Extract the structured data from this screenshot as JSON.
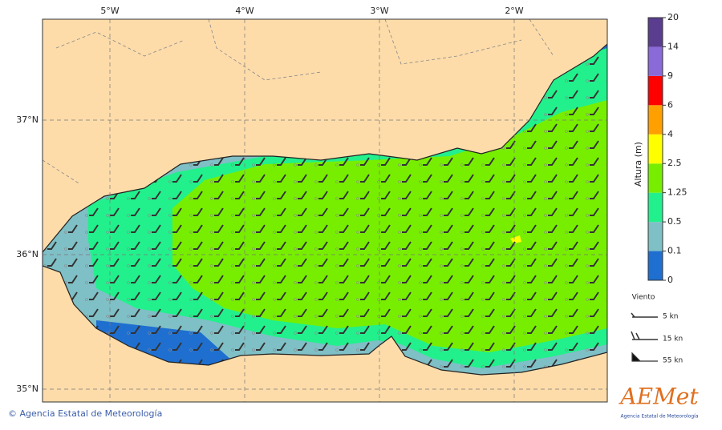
{
  "map": {
    "lon_labels": [
      "5°W",
      "4°W",
      "3°W",
      "2°W"
    ],
    "lat_labels": [
      "37°N",
      "36°N",
      "35°N"
    ]
  },
  "colorbar": {
    "title": "Altura (m)",
    "levels": [
      0,
      0.1,
      0.5,
      1.25,
      2.5,
      4,
      6,
      9,
      14,
      20
    ],
    "colors": [
      "#1f6fd0",
      "#7fbfc6",
      "#22f08c",
      "#77ee00",
      "#ffff00",
      "#ffa000",
      "#ff0000",
      "#8a6ad8",
      "#5a3d8f"
    ]
  },
  "wind_legend": {
    "title": "Viento",
    "entries": [
      "5 kn",
      "15 kn",
      "55 kn"
    ]
  },
  "footer": "© Agencia Estatal de Meteorología",
  "logo": {
    "name": "AEMet",
    "subtitle": "Agencia Estatal de Meteorología"
  }
}
